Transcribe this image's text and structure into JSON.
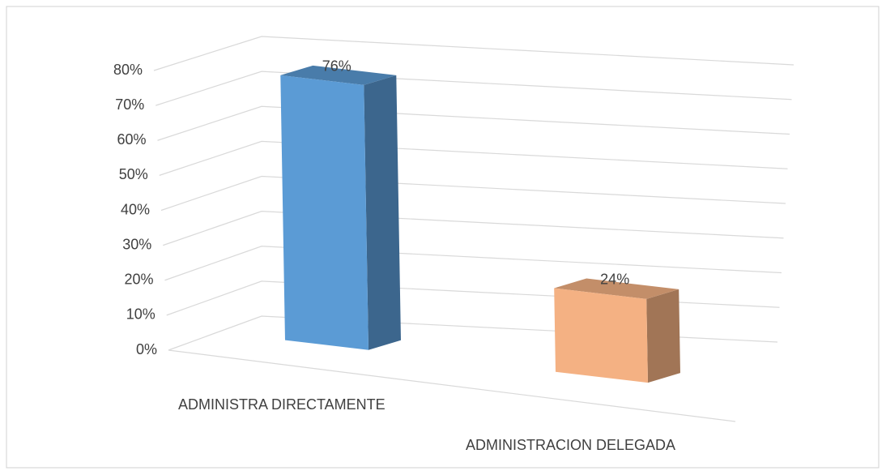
{
  "chart_data": {
    "type": "bar3d",
    "categories": [
      "ADMINISTRA DIRECTAMENTE",
      "ADMINISTRACION DELEGADA"
    ],
    "values": [
      76,
      24
    ],
    "value_labels": [
      "76%",
      "24%"
    ],
    "colors": [
      "#5b9bd5",
      "#f4b183"
    ],
    "ylim": [
      0,
      80
    ],
    "yticks": [
      {
        "value": 0,
        "label": "0%"
      },
      {
        "value": 10,
        "label": "10%"
      },
      {
        "value": 20,
        "label": "20%"
      },
      {
        "value": 30,
        "label": "30%"
      },
      {
        "value": 40,
        "label": "40%"
      },
      {
        "value": 50,
        "label": "50%"
      },
      {
        "value": 60,
        "label": "60%"
      },
      {
        "value": 70,
        "label": "70%"
      },
      {
        "value": 80,
        "label": "80%"
      }
    ],
    "grid": true
  }
}
